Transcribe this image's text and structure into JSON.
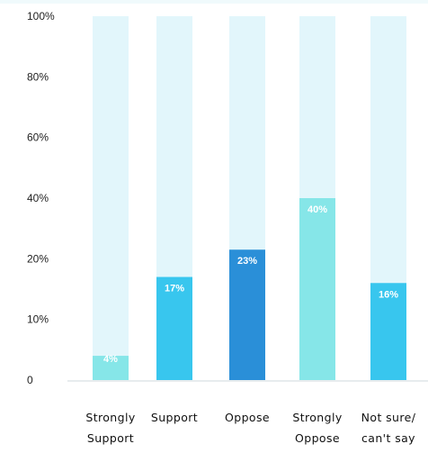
{
  "chart_data": {
    "type": "bar",
    "stacked_background": true,
    "categories": [
      [
        "Strongly",
        "Support"
      ],
      [
        "Support"
      ],
      [
        "Oppose"
      ],
      [
        "Strongly",
        "Oppose"
      ],
      [
        "Not sure/",
        "can't say"
      ]
    ],
    "values": [
      4,
      17,
      23,
      40,
      16
    ],
    "data_labels": [
      "4%",
      "17%",
      "23%",
      "40%",
      "16%"
    ],
    "y_ticks": [
      {
        "label": "0",
        "value": 0
      },
      {
        "label": "10%",
        "value": 10
      },
      {
        "label": "20%",
        "value": 20
      },
      {
        "label": "40%",
        "value": 40
      },
      {
        "label": "60%",
        "value": 60
      },
      {
        "label": "80%",
        "value": 80
      },
      {
        "label": "100%",
        "value": 100
      }
    ],
    "ylim": [
      0,
      100
    ],
    "grid": false,
    "colors": {
      "background_bar": "#e2f6fb",
      "bars": [
        "#86e6e8",
        "#38c6ee",
        "#2a8fd8",
        "#86e6e8",
        "#38c6ee"
      ],
      "axis_line": "#cfd8dc",
      "top_band": "#f0fafc"
    }
  }
}
